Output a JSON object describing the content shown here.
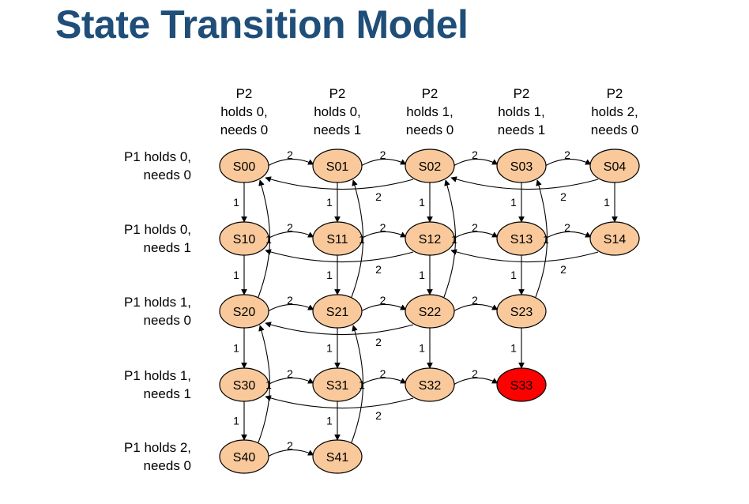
{
  "title": "State Transition Model",
  "column_headers": [
    [
      "P2",
      "holds  0,",
      "needs 0"
    ],
    [
      "P2",
      "holds  0,",
      "needs 1"
    ],
    [
      "P2",
      "holds  1,",
      "needs 0"
    ],
    [
      "P2",
      "holds  1,",
      "needs 1"
    ],
    [
      "P2",
      "holds  2,",
      "needs 0"
    ]
  ],
  "row_headers": [
    [
      "P1 holds  0,",
      "needs  0"
    ],
    [
      "P1 holds  0,",
      "needs  1"
    ],
    [
      "P1 holds  1,",
      "needs  0"
    ],
    [
      "P1 holds  1,",
      "needs  1"
    ],
    [
      "P1 holds  2,",
      "needs  0"
    ]
  ],
  "colors": {
    "node_fill": "#f9c99b",
    "node_stroke": "#000000",
    "highlight_fill": "#ff0000",
    "title": "#1f4e79",
    "dim_text": "#595959"
  },
  "states": [
    {
      "id": "S00",
      "row": 0,
      "col": 0
    },
    {
      "id": "S01",
      "row": 0,
      "col": 1
    },
    {
      "id": "S02",
      "row": 0,
      "col": 2
    },
    {
      "id": "S03",
      "row": 0,
      "col": 3
    },
    {
      "id": "S04",
      "row": 0,
      "col": 4
    },
    {
      "id": "S10",
      "row": 1,
      "col": 0
    },
    {
      "id": "S11",
      "row": 1,
      "col": 1
    },
    {
      "id": "S12",
      "row": 1,
      "col": 2
    },
    {
      "id": "S13",
      "row": 1,
      "col": 3
    },
    {
      "id": "S14",
      "row": 1,
      "col": 4
    },
    {
      "id": "S20",
      "row": 2,
      "col": 0
    },
    {
      "id": "S21",
      "row": 2,
      "col": 1
    },
    {
      "id": "S22",
      "row": 2,
      "col": 2
    },
    {
      "id": "S23",
      "row": 2,
      "col": 3
    },
    {
      "id": "S30",
      "row": 3,
      "col": 0
    },
    {
      "id": "S31",
      "row": 3,
      "col": 1
    },
    {
      "id": "S32",
      "row": 3,
      "col": 2
    },
    {
      "id": "S33",
      "row": 3,
      "col": 3,
      "highlight": true
    },
    {
      "id": "S40",
      "row": 4,
      "col": 0
    },
    {
      "id": "S41",
      "row": 4,
      "col": 1,
      "dim": true
    }
  ],
  "transitions_p2_forward": [
    {
      "from": "S00",
      "to": "S01",
      "label": "2"
    },
    {
      "from": "S01",
      "to": "S02",
      "label": "2"
    },
    {
      "from": "S02",
      "to": "S03",
      "label": "2"
    },
    {
      "from": "S03",
      "to": "S04",
      "label": "2"
    },
    {
      "from": "S10",
      "to": "S11",
      "label": "2"
    },
    {
      "from": "S11",
      "to": "S12",
      "label": "2"
    },
    {
      "from": "S12",
      "to": "S13",
      "label": "2"
    },
    {
      "from": "S13",
      "to": "S14",
      "label": "2"
    },
    {
      "from": "S20",
      "to": "S21",
      "label": "2"
    },
    {
      "from": "S21",
      "to": "S22",
      "label": "2"
    },
    {
      "from": "S22",
      "to": "S23",
      "label": "2"
    },
    {
      "from": "S30",
      "to": "S31",
      "label": "2"
    },
    {
      "from": "S31",
      "to": "S32",
      "label": "2"
    },
    {
      "from": "S32",
      "to": "S33",
      "label": "2"
    },
    {
      "from": "S40",
      "to": "S41",
      "label": "2"
    }
  ],
  "transitions_p2_release": [
    {
      "from": "S02",
      "to": "S00",
      "label": "2"
    },
    {
      "from": "S04",
      "to": "S02",
      "label": "2"
    },
    {
      "from": "S12",
      "to": "S10",
      "label": "2"
    },
    {
      "from": "S14",
      "to": "S12",
      "label": "2"
    },
    {
      "from": "S22",
      "to": "S20",
      "label": "2"
    },
    {
      "from": "S32",
      "to": "S30",
      "label": "2"
    }
  ],
  "transitions_p1_forward": [
    {
      "from": "S00",
      "to": "S10",
      "label": "1"
    },
    {
      "from": "S01",
      "to": "S11",
      "label": "1"
    },
    {
      "from": "S02",
      "to": "S12",
      "label": "1"
    },
    {
      "from": "S03",
      "to": "S13",
      "label": "1"
    },
    {
      "from": "S04",
      "to": "S14",
      "label": "1"
    },
    {
      "from": "S10",
      "to": "S20",
      "label": "1"
    },
    {
      "from": "S11",
      "to": "S21",
      "label": "1"
    },
    {
      "from": "S12",
      "to": "S22",
      "label": "1"
    },
    {
      "from": "S13",
      "to": "S23",
      "label": "1"
    },
    {
      "from": "S20",
      "to": "S30",
      "label": "1"
    },
    {
      "from": "S21",
      "to": "S31",
      "label": "1"
    },
    {
      "from": "S22",
      "to": "S32",
      "label": "1"
    },
    {
      "from": "S23",
      "to": "S33",
      "label": "1"
    },
    {
      "from": "S30",
      "to": "S40",
      "label": "1"
    },
    {
      "from": "S31",
      "to": "S41",
      "label": "1"
    }
  ],
  "transitions_p1_release": [
    {
      "from": "S20",
      "to": "S00",
      "label": "1"
    },
    {
      "from": "S21",
      "to": "S01",
      "label": "1"
    },
    {
      "from": "S22",
      "to": "S02",
      "label": "1"
    },
    {
      "from": "S23",
      "to": "S03",
      "label": "1"
    },
    {
      "from": "S40",
      "to": "S20",
      "label": "1"
    },
    {
      "from": "S41",
      "to": "S21",
      "label": "1"
    }
  ]
}
